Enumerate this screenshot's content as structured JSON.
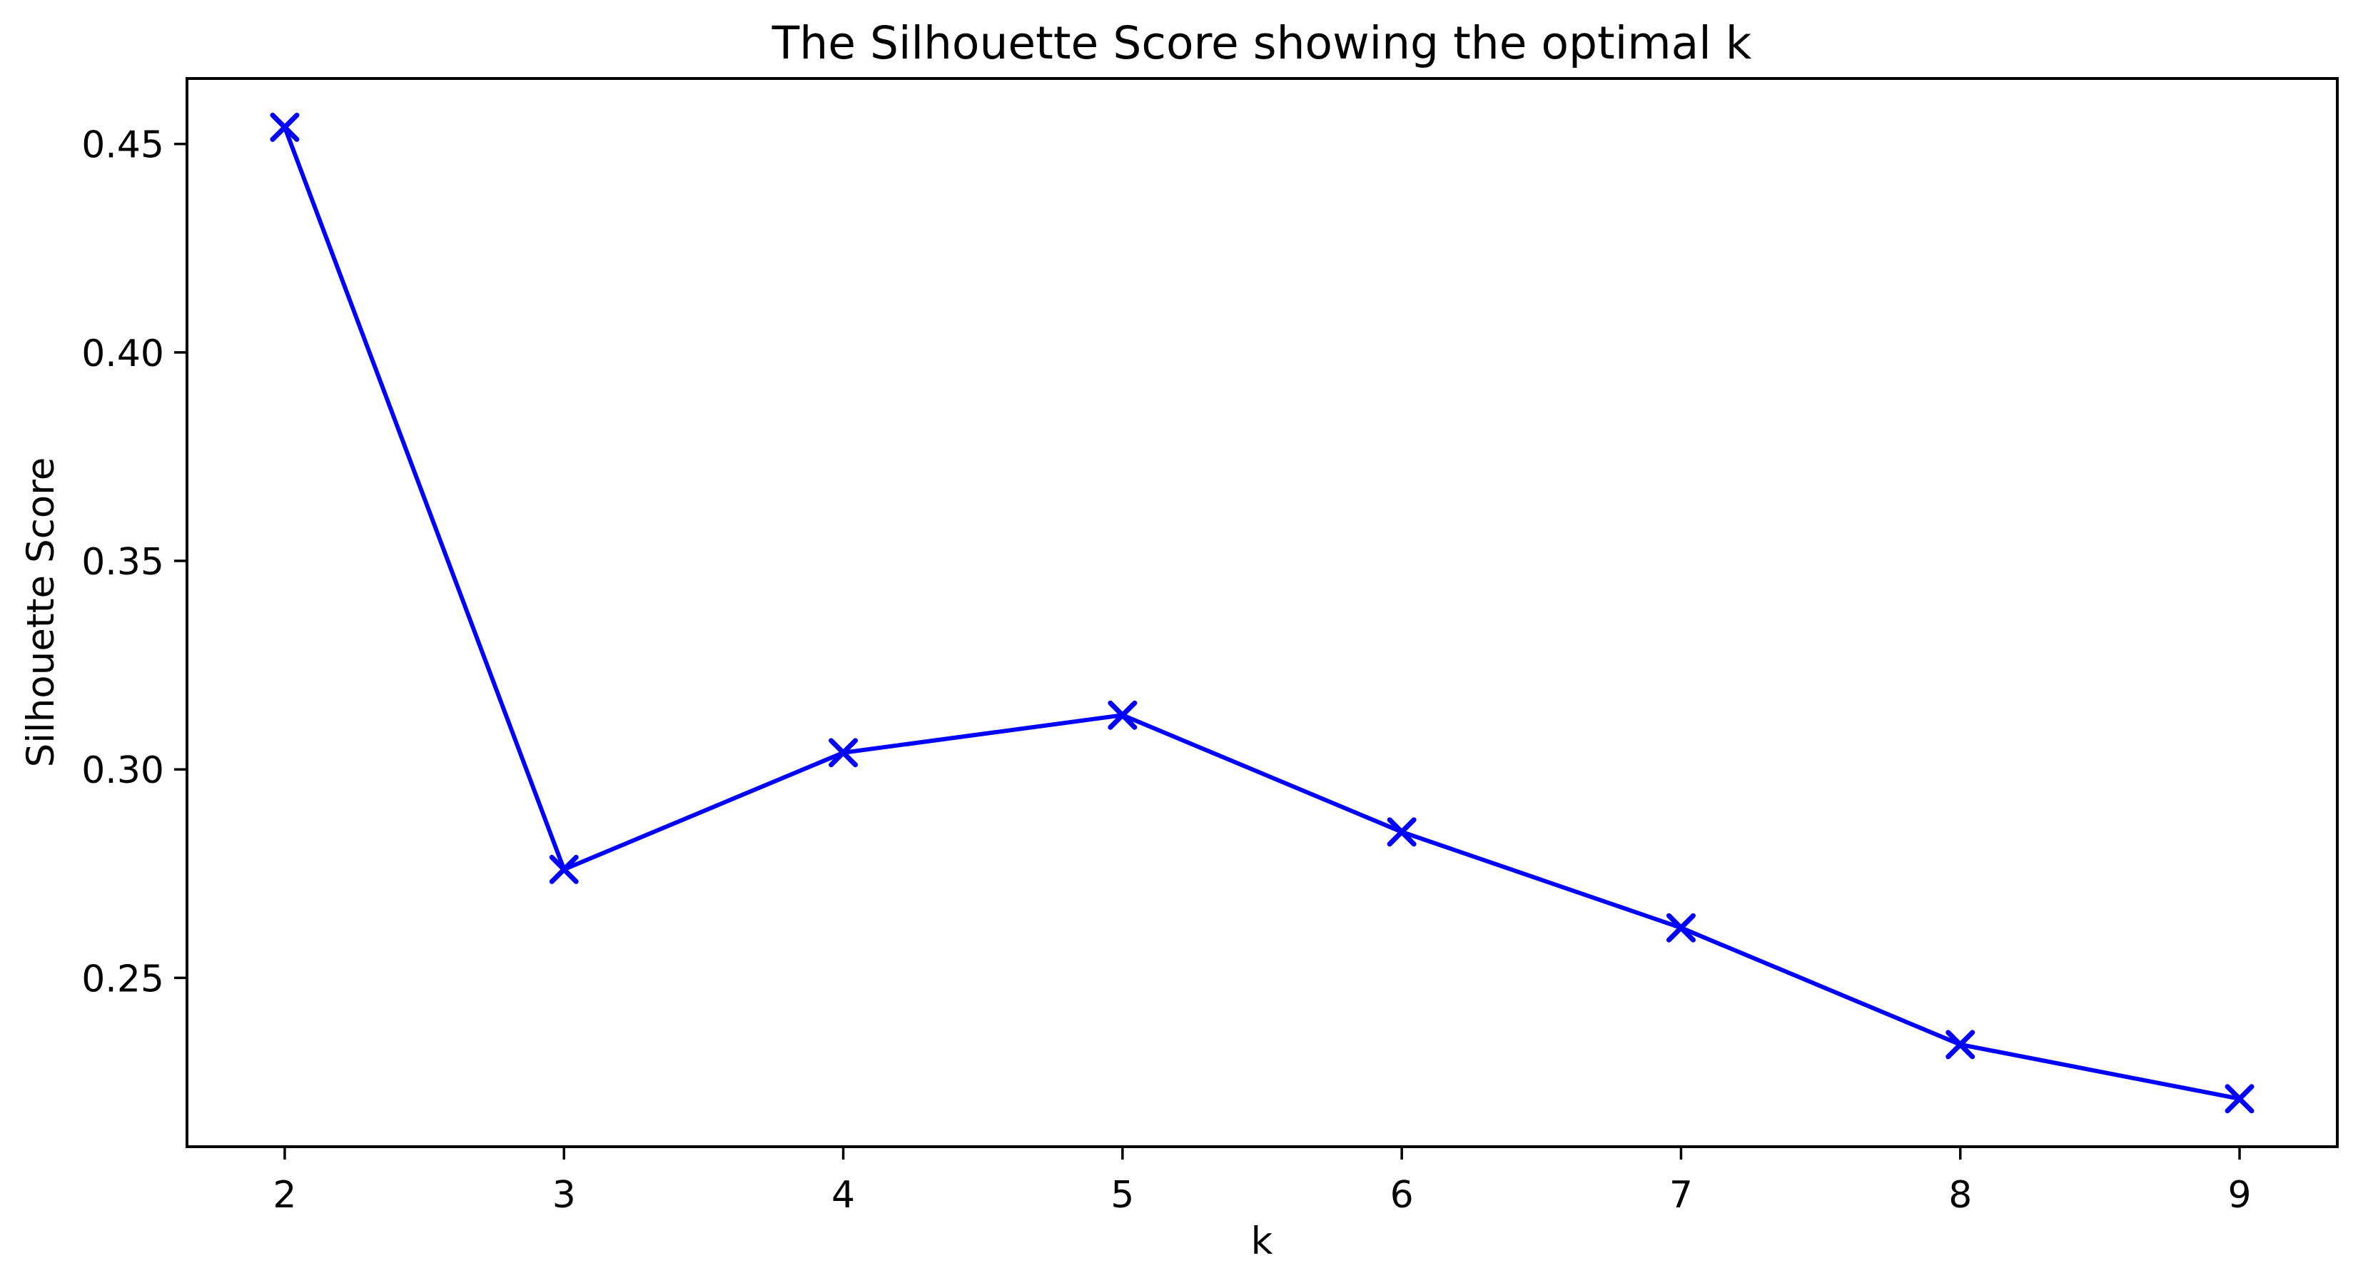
{
  "chart_data": {
    "type": "line",
    "title": "The Silhouette Score showing the optimal k",
    "xlabel": "k",
    "ylabel": "Silhouette Score",
    "x": [
      2,
      3,
      4,
      5,
      6,
      7,
      8,
      9
    ],
    "values": [
      0.454,
      0.276,
      0.304,
      0.313,
      0.285,
      0.262,
      0.234,
      0.221
    ],
    "series_name": "Silhouette Score",
    "xlim": [
      1.65,
      9.35
    ],
    "ylim": [
      0.2095,
      0.4657
    ],
    "xticks": [
      2,
      3,
      4,
      5,
      6,
      7,
      8,
      9
    ],
    "xtick_labels": [
      "2",
      "3",
      "4",
      "5",
      "6",
      "7",
      "8",
      "9"
    ],
    "yticks": [
      0.25,
      0.3,
      0.35,
      0.4,
      0.45
    ],
    "ytick_labels": [
      "0.25",
      "0.30",
      "0.35",
      "0.40",
      "0.45"
    ],
    "line_color": "#0000ff",
    "marker": "x",
    "grid": false,
    "legend_position": "none",
    "axes_color": "#000000",
    "background_color": "#ffffff"
  }
}
